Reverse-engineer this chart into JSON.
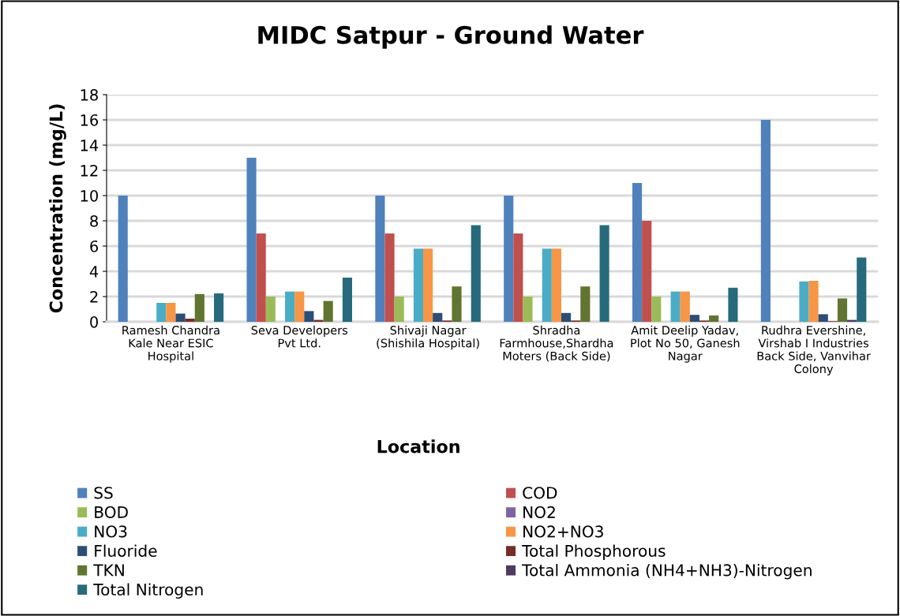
{
  "chart_data": {
    "type": "bar",
    "title": "MIDC Satpur - Ground Water",
    "xlabel": "Location",
    "ylabel": "Concentration (mg/L)",
    "categories": [
      "Ramesh Chandra Kale Near ESIC Hospital",
      "Seva Developers Pvt Ltd.",
      "Shivaji Nagar (Shishila Hospital)",
      "Shradha Farmhouse,Shardha Moters (Back Side)",
      "Amit Deelip Yadav, Plot No 50, Ganesh Nagar",
      "Rudhra Evershine, Virshab I Industries Back Side, Vanvihar Colony"
    ],
    "series": [
      {
        "name": "SS",
        "color": "#4f81bd",
        "values": [
          10,
          13,
          10,
          10,
          11,
          16
        ]
      },
      {
        "name": "COD",
        "color": "#c0504d",
        "values": [
          null,
          7,
          7,
          7,
          8,
          null
        ]
      },
      {
        "name": "BOD",
        "color": "#9bbb59",
        "values": [
          null,
          2,
          2,
          2,
          2,
          null
        ]
      },
      {
        "name": "NO2",
        "color": "#8064a2",
        "values": [
          null,
          null,
          null,
          null,
          null,
          null
        ]
      },
      {
        "name": "NO3",
        "color": "#4bacc6",
        "values": [
          1.5,
          2.4,
          5.8,
          5.8,
          2.4,
          3.2
        ]
      },
      {
        "name": "NO2+NO3",
        "color": "#f79646",
        "values": [
          1.5,
          2.4,
          5.8,
          5.8,
          2.4,
          3.25
        ]
      },
      {
        "name": "Fluoride",
        "color": "#2c4d75",
        "values": [
          0.65,
          0.85,
          0.7,
          0.7,
          0.55,
          0.6
        ]
      },
      {
        "name": "Total Phosphorous",
        "color": "#772c2a",
        "values": [
          0.25,
          0.15,
          0.1,
          0.1,
          0.1,
          0.05
        ]
      },
      {
        "name": "TKN",
        "color": "#5f7530",
        "values": [
          2.2,
          1.65,
          2.8,
          2.8,
          0.5,
          1.85
        ]
      },
      {
        "name": "Total Ammonia (NH4+NH3)-Nitrogen",
        "color": "#4d3b62",
        "values": [
          null,
          null,
          null,
          null,
          null,
          0.15
        ]
      },
      {
        "name": "Total Nitrogen",
        "color": "#276a7c",
        "values": [
          2.25,
          3.5,
          7.65,
          7.65,
          2.7,
          5.1
        ]
      }
    ],
    "ylim": [
      0,
      18
    ],
    "yticks": [
      0,
      2,
      4,
      6,
      8,
      10,
      12,
      14,
      16,
      18
    ],
    "grid": "y",
    "legend": "bottom"
  }
}
